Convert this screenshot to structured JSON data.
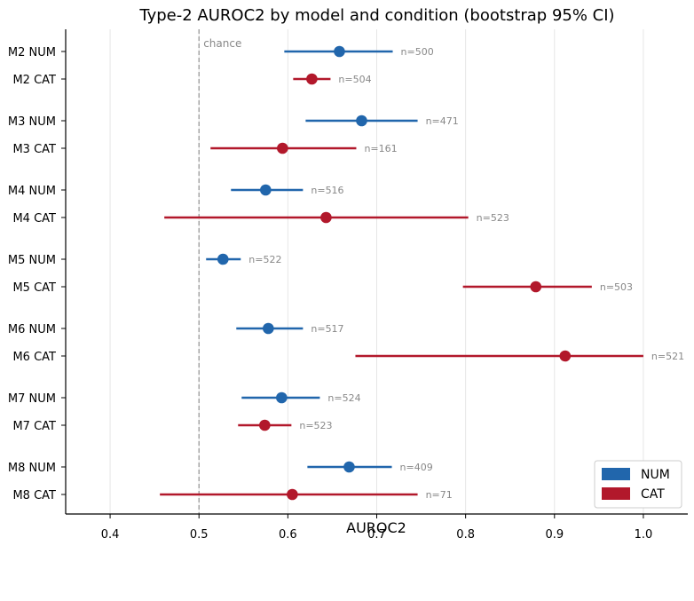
{
  "chart_data": {
    "type": "scatter",
    "title": "Type-2 AUROC2 by model and condition (bootstrap 95% CI)",
    "xlabel": "AUROC2",
    "ylabel": "",
    "xlim": [
      0.35,
      1.05
    ],
    "xticks": [
      "0.4",
      "0.5",
      "0.6",
      "0.7",
      "0.8",
      "0.9",
      "1.0"
    ],
    "xtick_values": [
      0.4,
      0.5,
      0.6,
      0.7,
      0.8,
      0.9,
      1.0
    ],
    "grid": "vertical",
    "reference_line": {
      "x": 0.5,
      "label": "chance",
      "style": "dashed"
    },
    "legend": {
      "placement": "bottom-right",
      "entries": [
        "NUM",
        "CAT"
      ]
    },
    "colors": {
      "NUM": "#2166ac",
      "CAT": "#b2182b"
    },
    "rows": [
      {
        "label": "M2 NUM",
        "condition": "NUM",
        "auroc": 0.658,
        "ci": [
          0.596,
          0.718
        ],
        "n_label": "n=500"
      },
      {
        "label": "M2 CAT",
        "condition": "CAT",
        "auroc": 0.627,
        "ci": [
          0.606,
          0.648
        ],
        "n_label": "n=504"
      },
      {
        "label": "M3 NUM",
        "condition": "NUM",
        "auroc": 0.683,
        "ci": [
          0.62,
          0.746
        ],
        "n_label": "n=471"
      },
      {
        "label": "M3 CAT",
        "condition": "CAT",
        "auroc": 0.594,
        "ci": [
          0.513,
          0.677
        ],
        "n_label": "n=161"
      },
      {
        "label": "M4 NUM",
        "condition": "NUM",
        "auroc": 0.575,
        "ci": [
          0.536,
          0.617
        ],
        "n_label": "n=516"
      },
      {
        "label": "M4 CAT",
        "condition": "CAT",
        "auroc": 0.643,
        "ci": [
          0.461,
          0.803
        ],
        "n_label": "n=523"
      },
      {
        "label": "M5 NUM",
        "condition": "NUM",
        "auroc": 0.527,
        "ci": [
          0.508,
          0.547
        ],
        "n_label": "n=522"
      },
      {
        "label": "M5 CAT",
        "condition": "CAT",
        "auroc": 0.879,
        "ci": [
          0.797,
          0.942
        ],
        "n_label": "n=503"
      },
      {
        "label": "M6 NUM",
        "condition": "NUM",
        "auroc": 0.578,
        "ci": [
          0.542,
          0.617
        ],
        "n_label": "n=517"
      },
      {
        "label": "M6 CAT",
        "condition": "CAT",
        "auroc": 0.912,
        "ci": [
          0.676,
          1.0
        ],
        "n_label": "n=521"
      },
      {
        "label": "M7 NUM",
        "condition": "NUM",
        "auroc": 0.593,
        "ci": [
          0.548,
          0.636
        ],
        "n_label": "n=524"
      },
      {
        "label": "M7 CAT",
        "condition": "CAT",
        "auroc": 0.574,
        "ci": [
          0.544,
          0.604
        ],
        "n_label": "n=523"
      },
      {
        "label": "M8 NUM",
        "condition": "NUM",
        "auroc": 0.669,
        "ci": [
          0.622,
          0.717
        ],
        "n_label": "n=409"
      },
      {
        "label": "M8 CAT",
        "condition": "CAT",
        "auroc": 0.605,
        "ci": [
          0.456,
          0.746
        ],
        "n_label": "n=71"
      }
    ]
  }
}
